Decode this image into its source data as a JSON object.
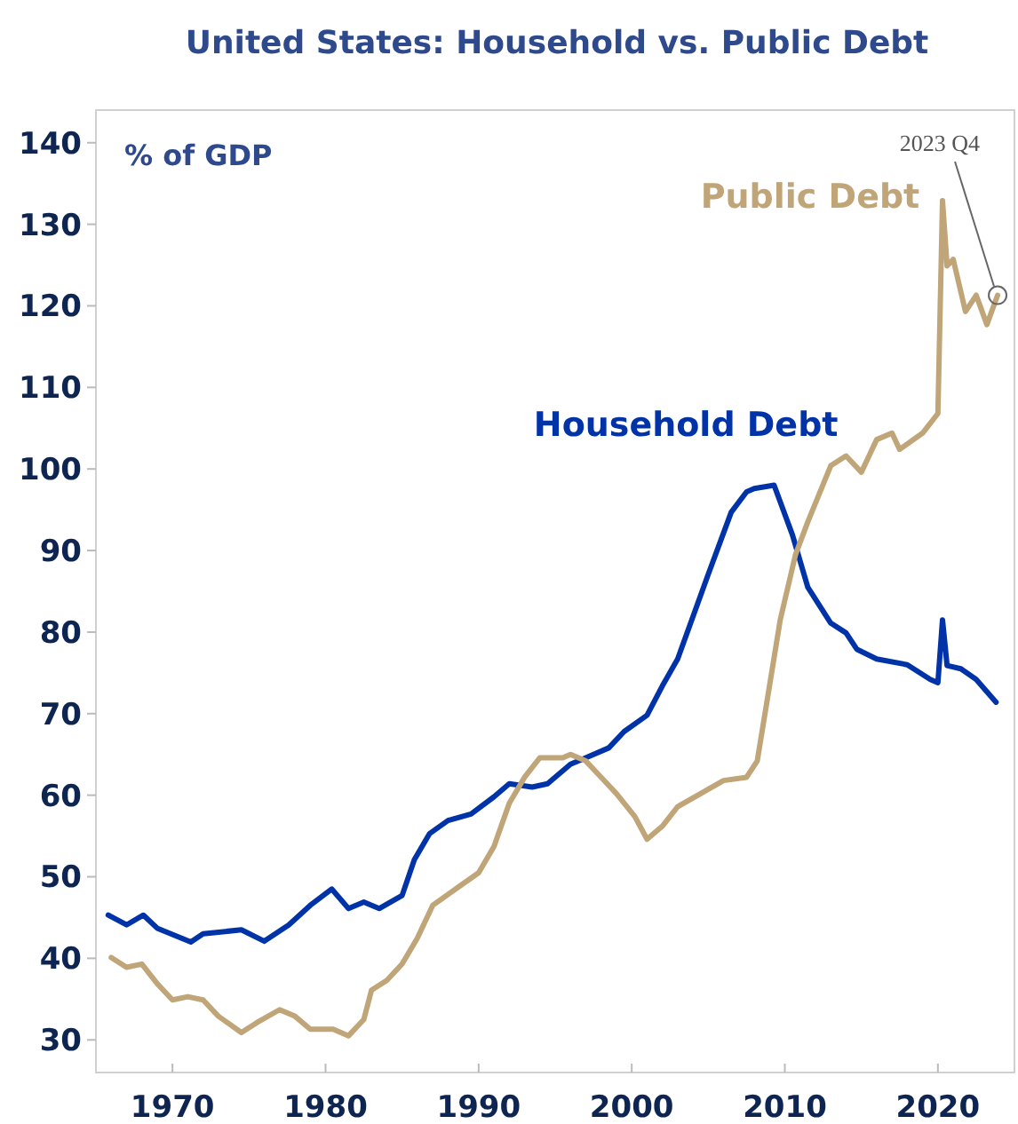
{
  "chart_data": {
    "type": "line",
    "title": "United States: Household vs. Public Debt",
    "ylabel": "% of GDP",
    "xlim": [
      1965,
      2025
    ],
    "xticks": [
      1970,
      1980,
      1990,
      2000,
      2010,
      2020
    ],
    "ylim": [
      26,
      144
    ],
    "yticks": [
      30,
      40,
      50,
      60,
      70,
      80,
      90,
      100,
      110,
      120,
      130,
      140
    ],
    "grid": false,
    "annotations": [
      {
        "text": "2023 Q4",
        "x": 2023.9,
        "y": 121.3
      }
    ],
    "series": [
      {
        "name": "Household Debt",
        "color": "#0033a8",
        "x": [
          1965.8,
          1967,
          1968.1,
          1969,
          1971.2,
          1972,
          1974.5,
          1976,
          1977.6,
          1979,
          1980.4,
          1981.5,
          1982.5,
          1983.5,
          1985,
          1985.8,
          1986.8,
          1988,
          1989.5,
          1991,
          1992,
          1993.5,
          1994.5,
          1996,
          1997,
          1998.5,
          1999.5,
          2001,
          2002,
          2003,
          2004,
          2005,
          2006.5,
          2007.5,
          2008,
          2009.3,
          2010.5,
          2011.5,
          2013,
          2014,
          2014.7,
          2016,
          2018,
          2019.5,
          2020,
          2020.3,
          2020.6,
          2021.5,
          2022.5,
          2023.8
        ],
        "values": [
          45.3,
          44.1,
          45.3,
          43.7,
          42,
          43,
          43.5,
          42.1,
          44.1,
          46.5,
          48.5,
          46.1,
          46.9,
          46.1,
          47.7,
          52.1,
          55.3,
          56.9,
          57.7,
          59.8,
          61.4,
          61,
          61.4,
          63.8,
          64.6,
          65.8,
          67.8,
          69.8,
          73.4,
          76.7,
          81.9,
          87.1,
          94.7,
          97.2,
          97.6,
          98,
          91.9,
          85.5,
          81.1,
          79.9,
          77.9,
          76.7,
          76,
          74.2,
          73.8,
          81.5,
          75.9,
          75.5,
          74.2,
          71.4
        ]
      },
      {
        "name": "Public Debt",
        "color": "#bfa577",
        "x": [
          1966,
          1967,
          1968,
          1969,
          1970,
          1971,
          1972,
          1973,
          1974.5,
          1975.5,
          1977,
          1978,
          1979,
          1980.5,
          1981.5,
          1982.5,
          1983,
          1984,
          1985,
          1986,
          1987,
          1988.5,
          1990,
          1991,
          1992,
          1993,
          1994,
          1995.5,
          1996,
          1997,
          1998,
          1999,
          2000.2,
          2001,
          2002,
          2003,
          2004.5,
          2006,
          2007.5,
          2008.2,
          2009,
          2009.7,
          2010.7,
          2011.5,
          2013,
          2014,
          2015,
          2016,
          2017,
          2017.5,
          2019,
          2020,
          2020.3,
          2020.6,
          2021,
          2021.8,
          2022.5,
          2023.2,
          2023.9
        ],
        "values": [
          40.1,
          38.9,
          39.3,
          36.9,
          34.9,
          35.3,
          34.9,
          32.9,
          30.9,
          32.1,
          33.7,
          32.9,
          31.3,
          31.3,
          30.5,
          32.5,
          36.1,
          37.3,
          39.3,
          42.5,
          46.5,
          48.5,
          50.5,
          53.7,
          59,
          62.2,
          64.6,
          64.6,
          65,
          64.2,
          62.2,
          60.2,
          57.4,
          54.6,
          56.2,
          58.6,
          60.2,
          61.8,
          62.2,
          64.2,
          73.4,
          81.5,
          89.5,
          93.5,
          100.4,
          101.6,
          99.6,
          103.6,
          104.4,
          102.4,
          104.4,
          106.8,
          132.9,
          124.9,
          125.7,
          119.3,
          121.3,
          117.7,
          121.3
        ]
      }
    ]
  }
}
